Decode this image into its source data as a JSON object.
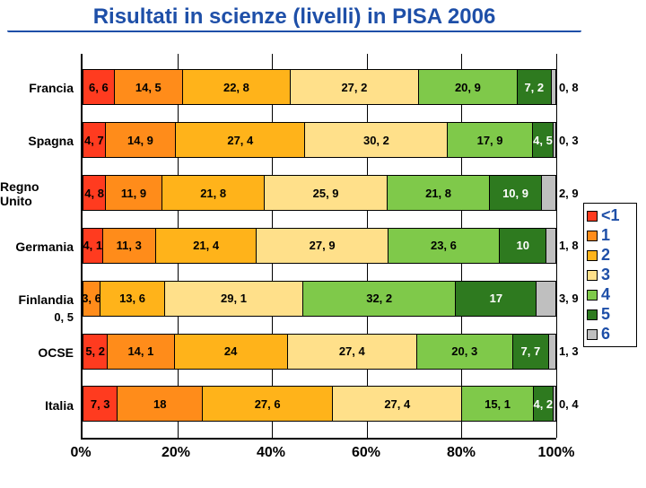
{
  "title": "Risultati in scienze (livelli) in PISA 2006",
  "chart": {
    "type": "bar-stacked-100",
    "orientation": "horizontal",
    "background_color": "#ffffff",
    "axis_color": "#000000",
    "grid_color": "#000000",
    "title_fontsize": 24,
    "title_color": "#1e4fa8",
    "title_underlay_color": "#1e4fa8",
    "label_fontsize": 14,
    "value_fontsize": 13,
    "series": [
      {
        "key": "<1",
        "color": "#ff3b1f"
      },
      {
        "key": "1",
        "color": "#ff8c1a"
      },
      {
        "key": "2",
        "color": "#ffb31a"
      },
      {
        "key": "3",
        "color": "#ffe08a"
      },
      {
        "key": "4",
        "color": "#7fc94a"
      },
      {
        "key": "5",
        "color": "#2e7a1f"
      },
      {
        "key": "6",
        "color": "#bfbfbf"
      }
    ],
    "categories": [
      {
        "label": "Francia",
        "values": [
          6.6,
          14.5,
          22.8,
          27.2,
          20.9,
          7.2,
          0.8
        ],
        "display": [
          "6, 6",
          "14, 5",
          "22, 8",
          "27, 2",
          "20, 9",
          "7, 2",
          "0, 8"
        ],
        "last_outside": true
      },
      {
        "label": "Spagna",
        "values": [
          4.7,
          14.9,
          27.4,
          30.2,
          17.9,
          4.5,
          0.3
        ],
        "display": [
          "4, 7",
          "14, 9",
          "27, 4",
          "30, 2",
          "17, 9",
          "4, 5",
          "0, 3"
        ],
        "last_outside": true
      },
      {
        "label": "Regno Unito",
        "values": [
          4.8,
          11.9,
          21.8,
          25.9,
          21.8,
          10.9,
          2.9
        ],
        "display": [
          "4, 8",
          "11, 9",
          "21, 8",
          "25, 9",
          "21, 8",
          "10, 9",
          "2, 9"
        ],
        "last_outside": true
      },
      {
        "label": "Germania",
        "values": [
          4.1,
          11.3,
          21.4,
          27.9,
          23.6,
          10.0,
          1.8
        ],
        "display": [
          "4, 1",
          "11, 3",
          "21, 4",
          "27, 9",
          "23, 6",
          "10",
          "1, 8"
        ],
        "last_outside": true
      },
      {
        "label": "Finlandia",
        "sublabel": "0, 5",
        "values": [
          3.6,
          13.6,
          29.1,
          32.2,
          17.0,
          3.9
        ],
        "display": [
          "3, 6",
          "13, 6",
          "29, 1",
          "32, 2",
          "17",
          "3, 9"
        ],
        "series_indices": [
          1,
          2,
          3,
          4,
          5,
          6
        ],
        "last_outside": true
      },
      {
        "label": "OCSE",
        "values": [
          5.2,
          14.1,
          24.0,
          27.4,
          20.3,
          7.7,
          1.3
        ],
        "display": [
          "5, 2",
          "14, 1",
          "24",
          "27, 4",
          "20, 3",
          "7, 7",
          "1, 3"
        ],
        "last_outside": true
      },
      {
        "label": "Italia",
        "values": [
          7.3,
          18.0,
          27.6,
          27.4,
          15.1,
          4.2,
          0.4
        ],
        "display": [
          "7, 3",
          "18",
          "27, 6",
          "27, 4",
          "15, 1",
          "4, 2",
          "0, 4"
        ],
        "last_outside": true
      }
    ],
    "x_ticks": [
      {
        "pos": 0,
        "label": "0%"
      },
      {
        "pos": 20,
        "label": "20%"
      },
      {
        "pos": 40,
        "label": "40%"
      },
      {
        "pos": 60,
        "label": "60%"
      },
      {
        "pos": 80,
        "label": "80%"
      },
      {
        "pos": 100,
        "label": "100%"
      }
    ]
  },
  "legend_title_color": "#1e4fa8"
}
